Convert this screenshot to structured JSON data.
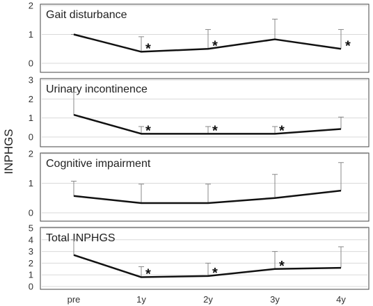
{
  "chart_data": {
    "type": "line",
    "ylabel": "INPHGS",
    "categories": [
      "pre",
      "1y",
      "2y",
      "3y",
      "4y"
    ],
    "colors": {
      "line": "#111111",
      "error_bar": "#888888",
      "grid": "#d9d9d9",
      "frame": "#444444"
    },
    "panels": [
      {
        "title": "Gait disturbance",
        "ylim": [
          0,
          2
        ],
        "yticks": [
          0,
          1,
          2
        ],
        "values": [
          1.0,
          0.4,
          0.5,
          0.83,
          0.5
        ],
        "error_upper": [
          1.0,
          0.92,
          1.17,
          1.53,
          1.17
        ],
        "significant": [
          false,
          true,
          true,
          false,
          true
        ],
        "marker": "*"
      },
      {
        "title": "Urinary incontinence",
        "ylim": [
          0,
          3
        ],
        "yticks": [
          0,
          1,
          2,
          3
        ],
        "values": [
          1.17,
          0.17,
          0.17,
          0.17,
          0.42
        ],
        "error_upper": [
          2.35,
          0.55,
          0.55,
          0.55,
          1.05
        ],
        "significant": [
          false,
          true,
          true,
          true,
          false
        ],
        "marker": "*"
      },
      {
        "title": "Cognitive impairment",
        "ylim": [
          0,
          2
        ],
        "yticks": [
          0,
          1,
          2
        ],
        "values": [
          0.57,
          0.33,
          0.33,
          0.5,
          0.75
        ],
        "error_upper": [
          1.07,
          0.97,
          0.97,
          1.3,
          1.7
        ],
        "significant": [
          false,
          false,
          false,
          false,
          false
        ],
        "marker": "*"
      },
      {
        "title": "Total INPHGS",
        "ylim": [
          0,
          5
        ],
        "yticks": [
          0,
          1,
          2,
          3,
          4,
          5
        ],
        "values": [
          2.7,
          0.8,
          0.9,
          1.5,
          1.6
        ],
        "error_upper": [
          4.0,
          1.7,
          2.0,
          3.0,
          3.4
        ],
        "significant": [
          false,
          true,
          true,
          true,
          false
        ],
        "marker": "*"
      }
    ]
  }
}
